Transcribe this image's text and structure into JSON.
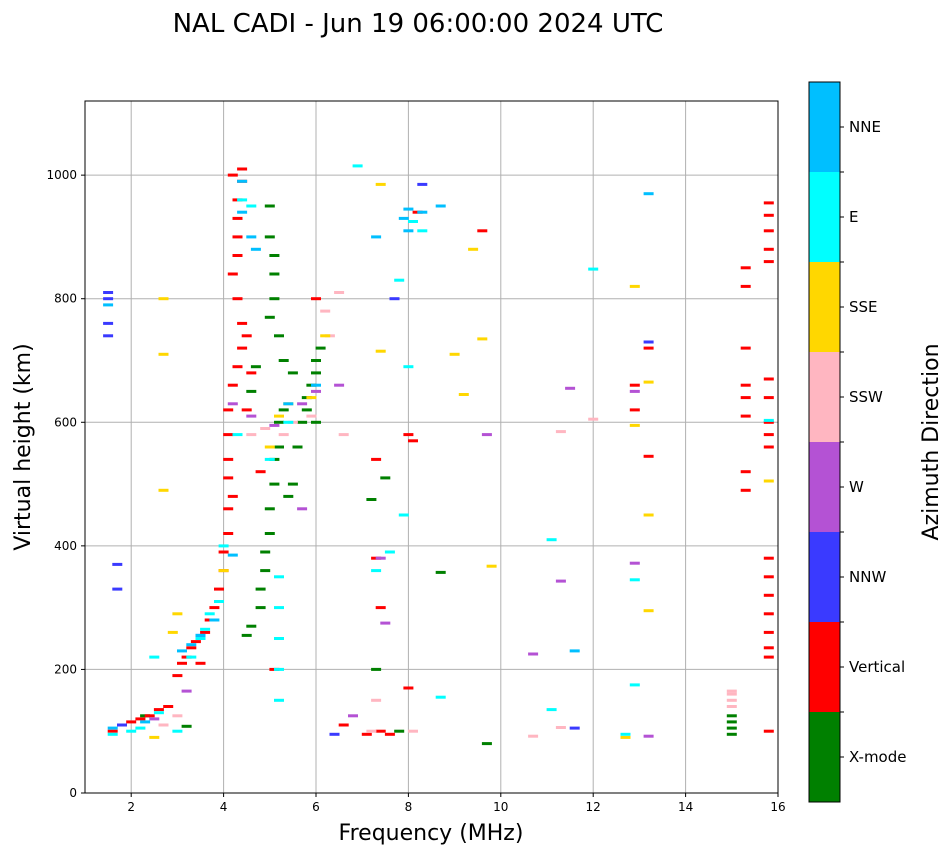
{
  "chart_data": {
    "type": "scatter",
    "title": "NAL CADI - Jun 19 06:00:00 2024 UTC",
    "xlabel": "Frequency (MHz)",
    "ylabel": "Virtual height (km)",
    "xlim": [
      1,
      16
    ],
    "ylim": [
      0,
      1120
    ],
    "xticks": [
      2,
      4,
      6,
      8,
      10,
      12,
      14,
      16
    ],
    "yticks": [
      0,
      200,
      400,
      600,
      800,
      1000
    ],
    "grid": true,
    "colorbar": {
      "label": "Azimuth Direction",
      "categories": [
        {
          "name": "X-mode",
          "color": "#008000"
        },
        {
          "name": "Vertical",
          "color": "#ff0000"
        },
        {
          "name": "NNW",
          "color": "#3a3aff"
        },
        {
          "name": "W",
          "color": "#b452d4"
        },
        {
          "name": "SSW",
          "color": "#ffb6c1"
        },
        {
          "name": "SSE",
          "color": "#ffd700"
        },
        {
          "name": "E",
          "color": "#00ffff"
        },
        {
          "name": "NNE",
          "color": "#00bfff"
        }
      ]
    },
    "series": [
      {
        "name": "X-mode",
        "points": [
          [
            2.3,
            125
          ],
          [
            3.2,
            108
          ],
          [
            4.5,
            255
          ],
          [
            4.6,
            270
          ],
          [
            4.8,
            300
          ],
          [
            4.8,
            330
          ],
          [
            4.9,
            360
          ],
          [
            4.9,
            390
          ],
          [
            5.0,
            420
          ],
          [
            5.0,
            460
          ],
          [
            5.1,
            500
          ],
          [
            5.1,
            540
          ],
          [
            5.2,
            560
          ],
          [
            5.2,
            600
          ],
          [
            5.3,
            620
          ],
          [
            5.4,
            480
          ],
          [
            5.5,
            500
          ],
          [
            5.6,
            560
          ],
          [
            5.7,
            600
          ],
          [
            5.8,
            640
          ],
          [
            5.9,
            660
          ],
          [
            6.0,
            680
          ],
          [
            6.0,
            700
          ],
          [
            6.1,
            720
          ],
          [
            5.1,
            800
          ],
          [
            5.1,
            840
          ],
          [
            5.1,
            870
          ],
          [
            5.0,
            900
          ],
          [
            5.0,
            950
          ],
          [
            5.5,
            680
          ],
          [
            5.3,
            700
          ],
          [
            5.2,
            740
          ],
          [
            5.0,
            770
          ],
          [
            4.6,
            650
          ],
          [
            4.7,
            690
          ],
          [
            5.8,
            620
          ],
          [
            6.0,
            600
          ],
          [
            7.3,
            200
          ],
          [
            7.2,
            475
          ],
          [
            7.8,
            100
          ],
          [
            7.5,
            510
          ],
          [
            8.7,
            357
          ],
          [
            9.7,
            80
          ],
          [
            15.0,
            95
          ],
          [
            15.0,
            105
          ],
          [
            15.0,
            115
          ],
          [
            15.0,
            125
          ]
        ]
      },
      {
        "name": "Vertical",
        "points": [
          [
            1.6,
            100
          ],
          [
            1.8,
            110
          ],
          [
            2.0,
            115
          ],
          [
            2.2,
            120
          ],
          [
            2.4,
            125
          ],
          [
            2.6,
            135
          ],
          [
            2.8,
            140
          ],
          [
            3.0,
            190
          ],
          [
            3.1,
            210
          ],
          [
            3.2,
            220
          ],
          [
            3.3,
            235
          ],
          [
            3.4,
            245
          ],
          [
            3.5,
            210
          ],
          [
            3.6,
            260
          ],
          [
            3.7,
            280
          ],
          [
            3.8,
            300
          ],
          [
            3.9,
            330
          ],
          [
            4.0,
            360
          ],
          [
            4.0,
            390
          ],
          [
            4.1,
            420
          ],
          [
            4.1,
            460
          ],
          [
            4.2,
            480
          ],
          [
            4.1,
            510
          ],
          [
            4.1,
            540
          ],
          [
            4.1,
            580
          ],
          [
            4.1,
            620
          ],
          [
            4.2,
            660
          ],
          [
            4.3,
            690
          ],
          [
            4.4,
            720
          ],
          [
            4.5,
            740
          ],
          [
            4.6,
            680
          ],
          [
            4.5,
            620
          ],
          [
            4.4,
            760
          ],
          [
            4.3,
            800
          ],
          [
            4.2,
            840
          ],
          [
            4.3,
            870
          ],
          [
            4.3,
            900
          ],
          [
            4.3,
            930
          ],
          [
            4.3,
            960
          ],
          [
            4.4,
            990
          ],
          [
            4.4,
            1010
          ],
          [
            4.2,
            1000
          ],
          [
            4.8,
            520
          ],
          [
            5.1,
            200
          ],
          [
            6.0,
            800
          ],
          [
            6.6,
            110
          ],
          [
            7.1,
            95
          ],
          [
            7.3,
            540
          ],
          [
            7.3,
            380
          ],
          [
            7.4,
            300
          ],
          [
            7.4,
            100
          ],
          [
            7.6,
            95
          ],
          [
            8.0,
            170
          ],
          [
            8.0,
            580
          ],
          [
            8.1,
            570
          ],
          [
            8.2,
            940
          ],
          [
            9.6,
            910
          ],
          [
            13.2,
            545
          ],
          [
            13.2,
            720
          ],
          [
            12.9,
            660
          ],
          [
            12.9,
            620
          ],
          [
            15.3,
            490
          ],
          [
            15.3,
            520
          ],
          [
            15.3,
            610
          ],
          [
            15.3,
            640
          ],
          [
            15.3,
            660
          ],
          [
            15.3,
            720
          ],
          [
            15.3,
            820
          ],
          [
            15.3,
            850
          ],
          [
            15.8,
            100
          ],
          [
            15.8,
            220
          ],
          [
            15.8,
            235
          ],
          [
            15.8,
            260
          ],
          [
            15.8,
            290
          ],
          [
            15.8,
            320
          ],
          [
            15.8,
            350
          ],
          [
            15.8,
            380
          ],
          [
            15.8,
            560
          ],
          [
            15.8,
            580
          ],
          [
            15.8,
            600
          ],
          [
            15.8,
            640
          ],
          [
            15.8,
            670
          ],
          [
            15.8,
            860
          ],
          [
            15.8,
            880
          ],
          [
            15.8,
            910
          ],
          [
            15.8,
            935
          ],
          [
            15.8,
            955
          ]
        ]
      },
      {
        "name": "NNW",
        "points": [
          [
            1.5,
            740
          ],
          [
            1.5,
            760
          ],
          [
            1.5,
            800
          ],
          [
            1.5,
            810
          ],
          [
            1.7,
            330
          ],
          [
            1.7,
            370
          ],
          [
            1.8,
            110
          ],
          [
            3.5,
            255
          ],
          [
            6.4,
            95
          ],
          [
            7.7,
            800
          ],
          [
            8.3,
            985
          ],
          [
            11.6,
            105
          ],
          [
            13.2,
            730
          ]
        ]
      },
      {
        "name": "W",
        "points": [
          [
            2.5,
            120
          ],
          [
            3.2,
            165
          ],
          [
            4.2,
            630
          ],
          [
            4.6,
            610
          ],
          [
            5.1,
            595
          ],
          [
            5.7,
            630
          ],
          [
            5.7,
            460
          ],
          [
            6.0,
            650
          ],
          [
            6.5,
            660
          ],
          [
            6.8,
            125
          ],
          [
            7.4,
            380
          ],
          [
            7.5,
            275
          ],
          [
            9.7,
            580
          ],
          [
            10.7,
            225
          ],
          [
            11.3,
            343
          ],
          [
            11.5,
            655
          ],
          [
            12.9,
            372
          ],
          [
            12.9,
            650
          ],
          [
            13.2,
            92
          ]
        ]
      },
      {
        "name": "SSW",
        "points": [
          [
            2.7,
            110
          ],
          [
            3.0,
            125
          ],
          [
            4.6,
            580
          ],
          [
            4.9,
            590
          ],
          [
            5.3,
            580
          ],
          [
            5.5,
            600
          ],
          [
            5.9,
            610
          ],
          [
            6.2,
            780
          ],
          [
            6.3,
            740
          ],
          [
            6.5,
            810
          ],
          [
            6.6,
            580
          ],
          [
            7.3,
            150
          ],
          [
            7.2,
            100
          ],
          [
            8.1,
            100
          ],
          [
            10.7,
            92
          ],
          [
            11.3,
            106
          ],
          [
            11.3,
            585
          ],
          [
            12.0,
            605
          ],
          [
            15.0,
            160
          ],
          [
            15.0,
            150
          ],
          [
            15.0,
            140
          ],
          [
            15.0,
            165
          ]
        ]
      },
      {
        "name": "SSE",
        "points": [
          [
            2.5,
            90
          ],
          [
            2.7,
            710
          ],
          [
            2.7,
            800
          ],
          [
            2.7,
            490
          ],
          [
            2.9,
            260
          ],
          [
            3.0,
            290
          ],
          [
            4.0,
            360
          ],
          [
            5.0,
            560
          ],
          [
            5.2,
            610
          ],
          [
            5.4,
            630
          ],
          [
            5.9,
            640
          ],
          [
            6.2,
            740
          ],
          [
            7.4,
            715
          ],
          [
            7.4,
            985
          ],
          [
            9.0,
            710
          ],
          [
            9.2,
            645
          ],
          [
            9.4,
            880
          ],
          [
            9.6,
            735
          ],
          [
            9.8,
            367
          ],
          [
            12.7,
            90
          ],
          [
            12.9,
            595
          ],
          [
            12.9,
            820
          ],
          [
            13.2,
            450
          ],
          [
            13.2,
            295
          ],
          [
            13.2,
            665
          ],
          [
            15.8,
            505
          ]
        ]
      },
      {
        "name": "E",
        "points": [
          [
            1.6,
            95
          ],
          [
            2.0,
            100
          ],
          [
            2.2,
            105
          ],
          [
            2.5,
            220
          ],
          [
            2.6,
            130
          ],
          [
            3.0,
            100
          ],
          [
            3.3,
            220
          ],
          [
            3.5,
            250
          ],
          [
            3.6,
            265
          ],
          [
            3.7,
            290
          ],
          [
            3.9,
            310
          ],
          [
            4.0,
            400
          ],
          [
            4.3,
            580
          ],
          [
            4.4,
            960
          ],
          [
            4.6,
            950
          ],
          [
            5.0,
            540
          ],
          [
            5.2,
            150
          ],
          [
            5.2,
            200
          ],
          [
            5.2,
            250
          ],
          [
            5.2,
            300
          ],
          [
            5.2,
            350
          ],
          [
            5.4,
            600
          ],
          [
            6.9,
            1015
          ],
          [
            7.3,
            360
          ],
          [
            7.6,
            390
          ],
          [
            7.8,
            830
          ],
          [
            7.9,
            450
          ],
          [
            8.0,
            690
          ],
          [
            8.1,
            925
          ],
          [
            8.3,
            910
          ],
          [
            8.7,
            155
          ],
          [
            11.1,
            410
          ],
          [
            11.1,
            135
          ],
          [
            12.0,
            848
          ],
          [
            12.7,
            95
          ],
          [
            12.9,
            345
          ],
          [
            12.9,
            175
          ],
          [
            15.8,
            603
          ]
        ]
      },
      {
        "name": "NNE",
        "points": [
          [
            1.5,
            790
          ],
          [
            1.6,
            105
          ],
          [
            2.3,
            115
          ],
          [
            3.1,
            230
          ],
          [
            3.3,
            240
          ],
          [
            3.5,
            255
          ],
          [
            3.8,
            280
          ],
          [
            4.2,
            385
          ],
          [
            4.4,
            990
          ],
          [
            4.4,
            940
          ],
          [
            4.6,
            900
          ],
          [
            4.7,
            880
          ],
          [
            5.4,
            630
          ],
          [
            6.0,
            660
          ],
          [
            7.3,
            900
          ],
          [
            7.9,
            930
          ],
          [
            8.0,
            945
          ],
          [
            8.0,
            910
          ],
          [
            8.3,
            940
          ],
          [
            8.7,
            950
          ],
          [
            11.6,
            230
          ],
          [
            13.2,
            970
          ]
        ]
      }
    ]
  }
}
